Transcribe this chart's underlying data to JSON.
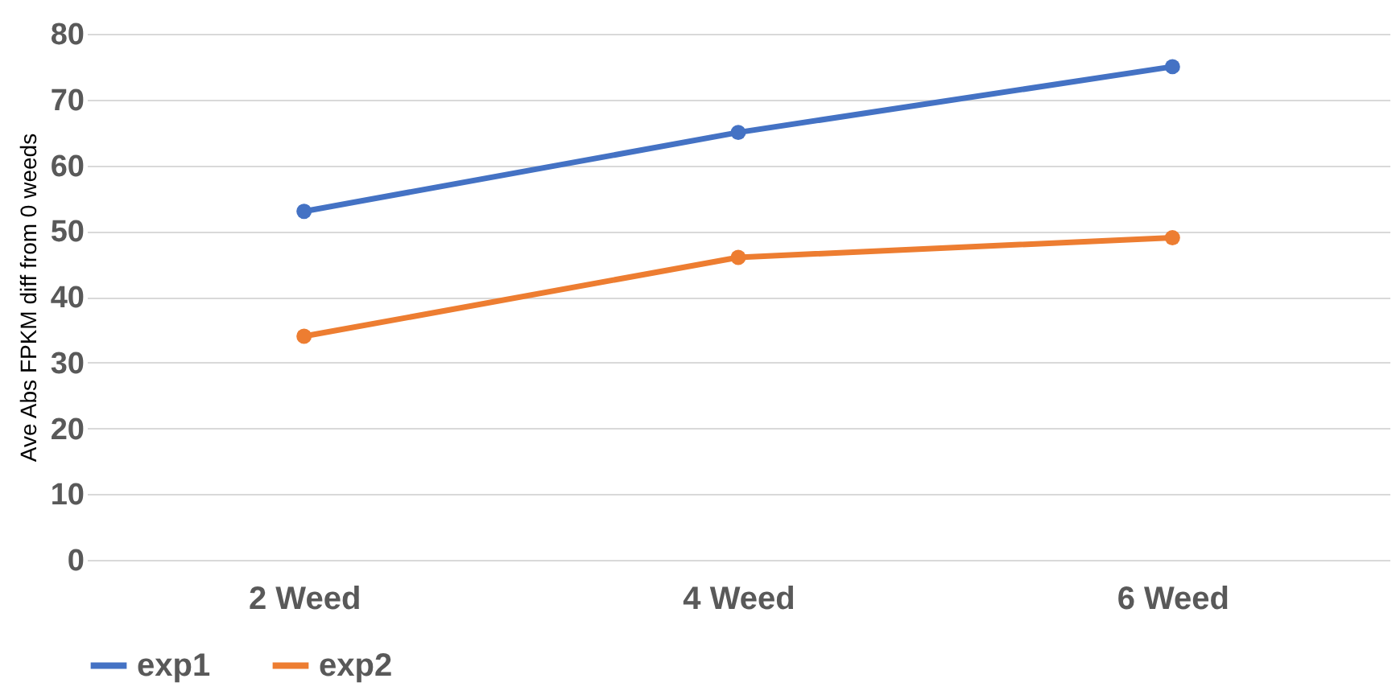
{
  "chart_data": {
    "type": "line",
    "ylabel": "Ave Abs FPKM diff from 0 weeds",
    "categories": [
      "2 Weed",
      "4 Weed",
      "6 Weed"
    ],
    "series": [
      {
        "name": "exp1",
        "color": "#4472c4",
        "values": [
          53,
          65,
          75
        ]
      },
      {
        "name": "exp2",
        "color": "#ed7d31",
        "values": [
          34,
          46,
          49
        ]
      }
    ],
    "ylim": [
      0,
      80
    ],
    "yticks": [
      0,
      10,
      20,
      30,
      40,
      50,
      60,
      70,
      80
    ],
    "grid": "y",
    "legend": "bottom",
    "marker": "circle",
    "line_style": "solid"
  }
}
